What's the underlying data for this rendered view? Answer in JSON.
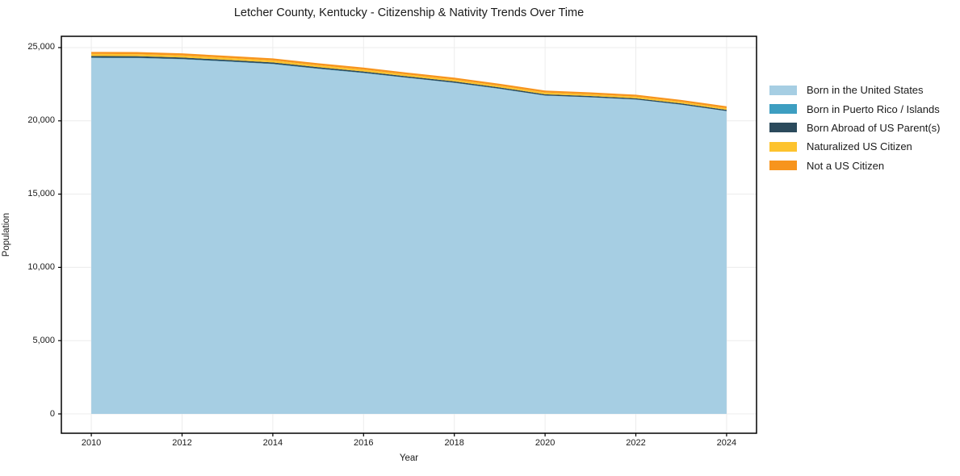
{
  "title": "Letcher County, Kentucky - Citizenship & Nativity Trends Over Time",
  "chart_data": {
    "type": "area",
    "stacked": true,
    "title": "Letcher County, Kentucky - Citizenship & Nativity Trends Over Time",
    "xlabel": "Year",
    "ylabel": "Population",
    "x": [
      2010,
      2011,
      2012,
      2013,
      2014,
      2015,
      2016,
      2017,
      2018,
      2019,
      2020,
      2021,
      2022,
      2023,
      2024
    ],
    "series": [
      {
        "name": "Born in the United States",
        "color": "#A6CEE3",
        "values": [
          24290,
          24280,
          24200,
          24040,
          23870,
          23550,
          23260,
          22920,
          22590,
          22180,
          21720,
          21600,
          21450,
          21100,
          20660
        ]
      },
      {
        "name": "Born in Puerto Rico / Islands",
        "color": "#3D9EC1",
        "values": [
          25,
          25,
          20,
          20,
          20,
          20,
          15,
          15,
          15,
          15,
          10,
          10,
          10,
          10,
          10
        ]
      },
      {
        "name": "Born Abroad of US Parent(s)",
        "color": "#2B4A5C",
        "values": [
          110,
          110,
          105,
          100,
          100,
          95,
          95,
          90,
          90,
          85,
          85,
          85,
          80,
          80,
          80
        ]
      },
      {
        "name": "Naturalized US Citizen",
        "color": "#FDC32E",
        "values": [
          140,
          140,
          140,
          135,
          135,
          130,
          130,
          125,
          125,
          120,
          120,
          115,
          115,
          110,
          110
        ]
      },
      {
        "name": "Not a US Citizen",
        "color": "#F7941D",
        "values": [
          140,
          140,
          140,
          140,
          135,
          135,
          135,
          130,
          130,
          130,
          130,
          130,
          130,
          130,
          130
        ]
      }
    ],
    "xticks": [
      2010,
      2012,
      2014,
      2016,
      2018,
      2020,
      2022,
      2024
    ],
    "xtick_labels": [
      "2010",
      "2012",
      "2014",
      "2016",
      "2018",
      "2020",
      "2022",
      "2024"
    ],
    "yticks": [
      0,
      5000,
      10000,
      15000,
      20000,
      25000
    ],
    "ytick_labels": [
      "0",
      "5,000",
      "10,000",
      "15,000",
      "20,000",
      "25,000"
    ],
    "xlim": [
      2009.34,
      2024.66
    ],
    "ylim": [
      -1320,
      25770
    ],
    "grid": true,
    "grid_color": "#ececec",
    "spine_color": "#000000",
    "legend_position": "right"
  }
}
